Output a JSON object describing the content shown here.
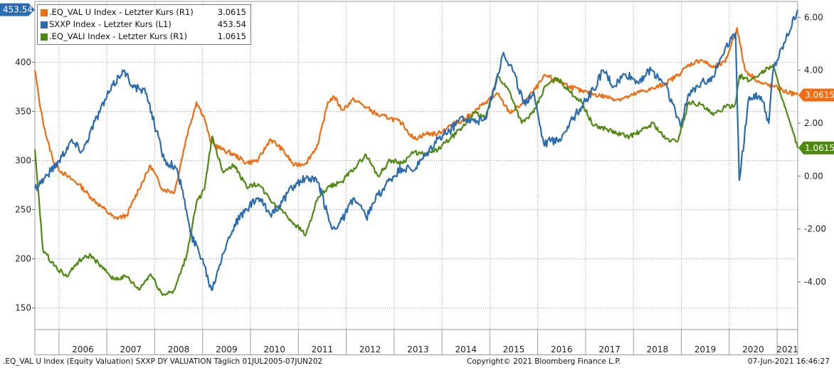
{
  "chart_data": {
    "type": "line",
    "x_range": [
      "2005-07-01",
      "2021-06-07"
    ],
    "year_labels": [
      "2006",
      "2007",
      "2008",
      "2009",
      "2010",
      "2011",
      "2012",
      "2013",
      "2014",
      "2015",
      "2016",
      "2017",
      "2018",
      "2019",
      "2020",
      "2021"
    ],
    "left_axis": {
      "ticks": [
        150,
        200,
        250,
        300,
        350,
        400
      ],
      "ylim": [
        128,
        462
      ]
    },
    "right_axis": {
      "ticks": [
        "-4.00",
        "-2.00",
        "0.00",
        "2.00",
        "4.00",
        "6.00"
      ],
      "ylim": [
        -5.8,
        6.6
      ]
    },
    "grid": "dotted",
    "legend_position": "top-left",
    "series": [
      {
        "name": ".EQ_VAL U Index - Letzter Kurs (R1)",
        "last_label": "3.0615",
        "axis": "right",
        "color": "#f26b0f",
        "points": [
          [
            "2005-07-01",
            4.0
          ],
          [
            "2005-08-15",
            2.5
          ],
          [
            "2005-10-01",
            1.4
          ],
          [
            "2005-12-01",
            0.4
          ],
          [
            "2006-03-01",
            0.0
          ],
          [
            "2006-06-01",
            -0.3
          ],
          [
            "2006-09-01",
            -0.8
          ],
          [
            "2006-12-01",
            -1.2
          ],
          [
            "2007-03-01",
            -1.6
          ],
          [
            "2007-06-01",
            -1.5
          ],
          [
            "2007-09-01",
            -0.5
          ],
          [
            "2007-12-01",
            0.4
          ],
          [
            "2008-03-01",
            -0.5
          ],
          [
            "2008-06-01",
            -0.6
          ],
          [
            "2008-09-01",
            1.5
          ],
          [
            "2008-11-15",
            2.8
          ],
          [
            "2009-01-15",
            2.2
          ],
          [
            "2009-03-01",
            1.3
          ],
          [
            "2009-06-01",
            1.0
          ],
          [
            "2009-09-01",
            0.8
          ],
          [
            "2009-12-01",
            0.5
          ],
          [
            "2010-03-01",
            0.6
          ],
          [
            "2010-06-01",
            1.4
          ],
          [
            "2010-09-01",
            1.0
          ],
          [
            "2010-12-01",
            0.4
          ],
          [
            "2011-03-01",
            0.5
          ],
          [
            "2011-06-01",
            1.2
          ],
          [
            "2011-08-15",
            2.8
          ],
          [
            "2011-10-01",
            3.0
          ],
          [
            "2011-12-01",
            2.5
          ],
          [
            "2012-03-01",
            2.9
          ],
          [
            "2012-06-01",
            2.6
          ],
          [
            "2012-09-01",
            2.3
          ],
          [
            "2012-12-01",
            2.2
          ],
          [
            "2013-03-01",
            2.0
          ],
          [
            "2013-06-01",
            1.4
          ],
          [
            "2013-09-01",
            1.6
          ],
          [
            "2013-12-01",
            1.6
          ],
          [
            "2014-03-01",
            1.9
          ],
          [
            "2014-06-01",
            2.1
          ],
          [
            "2014-09-01",
            2.4
          ],
          [
            "2014-12-01",
            2.8
          ],
          [
            "2015-03-01",
            3.1
          ],
          [
            "2015-06-01",
            2.4
          ],
          [
            "2015-09-01",
            2.7
          ],
          [
            "2015-12-01",
            3.2
          ],
          [
            "2016-03-01",
            3.8
          ],
          [
            "2016-06-01",
            3.6
          ],
          [
            "2016-09-01",
            3.4
          ],
          [
            "2016-12-01",
            3.2
          ],
          [
            "2017-03-01",
            3.1
          ],
          [
            "2017-06-01",
            3.0
          ],
          [
            "2017-09-01",
            2.9
          ],
          [
            "2017-12-01",
            3.0
          ],
          [
            "2018-03-01",
            3.2
          ],
          [
            "2018-06-01",
            3.3
          ],
          [
            "2018-09-01",
            3.5
          ],
          [
            "2018-12-01",
            3.8
          ],
          [
            "2019-03-01",
            4.2
          ],
          [
            "2019-06-01",
            4.4
          ],
          [
            "2019-09-01",
            4.1
          ],
          [
            "2019-12-01",
            4.3
          ],
          [
            "2020-03-01",
            5.6
          ],
          [
            "2020-05-01",
            4.0
          ],
          [
            "2020-09-01",
            3.5
          ],
          [
            "2020-12-01",
            3.4
          ],
          [
            "2021-03-01",
            3.2
          ],
          [
            "2021-06-07",
            3.0615
          ]
        ]
      },
      {
        "name": "SXXP Index - Letzter Kurs (L1)",
        "last_label": "453.54",
        "axis": "left",
        "color": "#2b6cb0",
        "points": [
          [
            "2005-07-01",
            272
          ],
          [
            "2005-10-01",
            285
          ],
          [
            "2006-01-01",
            300
          ],
          [
            "2006-04-01",
            320
          ],
          [
            "2006-07-01",
            310
          ],
          [
            "2006-10-01",
            340
          ],
          [
            "2007-01-01",
            365
          ],
          [
            "2007-05-01",
            392
          ],
          [
            "2007-08-01",
            375
          ],
          [
            "2007-11-01",
            368
          ],
          [
            "2008-01-15",
            330
          ],
          [
            "2008-03-15",
            300
          ],
          [
            "2008-06-01",
            295
          ],
          [
            "2008-08-01",
            270
          ],
          [
            "2008-10-01",
            225
          ],
          [
            "2009-01-01",
            200
          ],
          [
            "2009-03-10",
            168
          ],
          [
            "2009-06-01",
            205
          ],
          [
            "2009-09-01",
            235
          ],
          [
            "2009-12-01",
            250
          ],
          [
            "2010-03-01",
            262
          ],
          [
            "2010-06-01",
            245
          ],
          [
            "2010-09-01",
            258
          ],
          [
            "2010-12-01",
            275
          ],
          [
            "2011-03-01",
            282
          ],
          [
            "2011-06-01",
            278
          ],
          [
            "2011-09-15",
            230
          ],
          [
            "2011-12-01",
            240
          ],
          [
            "2012-03-01",
            262
          ],
          [
            "2012-06-01",
            242
          ],
          [
            "2012-09-01",
            265
          ],
          [
            "2012-12-01",
            280
          ],
          [
            "2013-03-01",
            292
          ],
          [
            "2013-06-01",
            290
          ],
          [
            "2013-09-01",
            305
          ],
          [
            "2013-12-01",
            322
          ],
          [
            "2014-03-01",
            330
          ],
          [
            "2014-06-01",
            345
          ],
          [
            "2014-09-01",
            340
          ],
          [
            "2014-12-01",
            342
          ],
          [
            "2015-04-15",
            410
          ],
          [
            "2015-07-01",
            390
          ],
          [
            "2015-09-15",
            358
          ],
          [
            "2015-12-01",
            370
          ],
          [
            "2016-02-15",
            318
          ],
          [
            "2016-06-15",
            322
          ],
          [
            "2016-09-01",
            338
          ],
          [
            "2016-12-01",
            355
          ],
          [
            "2017-03-01",
            372
          ],
          [
            "2017-05-15",
            392
          ],
          [
            "2017-08-01",
            375
          ],
          [
            "2017-11-01",
            388
          ],
          [
            "2018-02-01",
            380
          ],
          [
            "2018-05-15",
            392
          ],
          [
            "2018-09-01",
            378
          ],
          [
            "2018-12-25",
            335
          ],
          [
            "2019-03-01",
            368
          ],
          [
            "2019-06-01",
            380
          ],
          [
            "2019-09-01",
            385
          ],
          [
            "2019-12-01",
            415
          ],
          [
            "2020-02-19",
            430
          ],
          [
            "2020-03-18",
            280
          ],
          [
            "2020-06-01",
            365
          ],
          [
            "2020-09-01",
            365
          ],
          [
            "2020-10-30",
            338
          ],
          [
            "2020-12-01",
            392
          ],
          [
            "2021-03-01",
            420
          ],
          [
            "2021-06-07",
            453.54
          ]
        ]
      },
      {
        "name": ".EQ_VALI Index - Letzter Kurs (R1)",
        "last_label": "1.0615",
        "axis": "right",
        "color": "#4f8a10",
        "points": [
          [
            "2005-07-01",
            1.0
          ],
          [
            "2005-09-01",
            -2.8
          ],
          [
            "2005-12-01",
            -3.4
          ],
          [
            "2006-03-01",
            -3.8
          ],
          [
            "2006-06-01",
            -3.2
          ],
          [
            "2006-09-01",
            -3.0
          ],
          [
            "2006-12-01",
            -3.5
          ],
          [
            "2007-03-01",
            -3.9
          ],
          [
            "2007-06-01",
            -3.8
          ],
          [
            "2007-09-01",
            -4.3
          ],
          [
            "2007-12-01",
            -3.7
          ],
          [
            "2008-03-01",
            -4.5
          ],
          [
            "2008-06-01",
            -4.3
          ],
          [
            "2008-09-01",
            -3.0
          ],
          [
            "2008-11-15",
            -1.0
          ],
          [
            "2009-01-15",
            -0.5
          ],
          [
            "2009-03-15",
            1.5
          ],
          [
            "2009-06-01",
            0.2
          ],
          [
            "2009-09-01",
            0.4
          ],
          [
            "2009-12-01",
            -0.4
          ],
          [
            "2010-03-01",
            -0.3
          ],
          [
            "2010-06-01",
            -0.9
          ],
          [
            "2010-09-01",
            -1.3
          ],
          [
            "2010-12-01",
            -1.8
          ],
          [
            "2011-03-01",
            -2.2
          ],
          [
            "2011-06-01",
            -0.8
          ],
          [
            "2011-09-01",
            -0.4
          ],
          [
            "2011-12-01",
            -0.2
          ],
          [
            "2012-03-01",
            0.3
          ],
          [
            "2012-06-01",
            0.8
          ],
          [
            "2012-09-01",
            0.0
          ],
          [
            "2012-12-01",
            0.6
          ],
          [
            "2013-03-01",
            0.5
          ],
          [
            "2013-06-01",
            0.9
          ],
          [
            "2013-09-01",
            0.8
          ],
          [
            "2013-12-01",
            1.0
          ],
          [
            "2014-03-01",
            1.4
          ],
          [
            "2014-06-01",
            1.8
          ],
          [
            "2014-09-01",
            2.4
          ],
          [
            "2014-12-01",
            2.2
          ],
          [
            "2015-03-01",
            3.8
          ],
          [
            "2015-06-01",
            3.2
          ],
          [
            "2015-09-01",
            2.0
          ],
          [
            "2015-12-01",
            2.4
          ],
          [
            "2016-03-01",
            3.4
          ],
          [
            "2016-06-01",
            3.7
          ],
          [
            "2016-09-01",
            3.2
          ],
          [
            "2016-12-01",
            2.8
          ],
          [
            "2017-03-01",
            1.9
          ],
          [
            "2017-06-01",
            1.8
          ],
          [
            "2017-09-01",
            1.6
          ],
          [
            "2017-12-01",
            1.5
          ],
          [
            "2018-03-01",
            1.7
          ],
          [
            "2018-06-01",
            2.0
          ],
          [
            "2018-09-01",
            1.4
          ],
          [
            "2018-12-01",
            1.3
          ],
          [
            "2019-03-01",
            2.8
          ],
          [
            "2019-06-01",
            2.7
          ],
          [
            "2019-09-01",
            2.3
          ],
          [
            "2019-12-01",
            2.6
          ],
          [
            "2020-02-15",
            2.7
          ],
          [
            "2020-03-20",
            3.8
          ],
          [
            "2020-06-01",
            3.6
          ],
          [
            "2020-09-01",
            3.9
          ],
          [
            "2020-12-01",
            4.2
          ],
          [
            "2021-03-01",
            2.6
          ],
          [
            "2021-06-07",
            1.0615
          ]
        ]
      }
    ]
  },
  "footer": {
    "left": ".EQ_VAL U Index (Equity Valuation) SXXP DY VALUATION  Täglich 01JUL2005-07JUN202",
    "center": "Copyright© 2021 Bloomberg Finance L.P.",
    "right": "07-Jun-2021 16:46:27"
  }
}
